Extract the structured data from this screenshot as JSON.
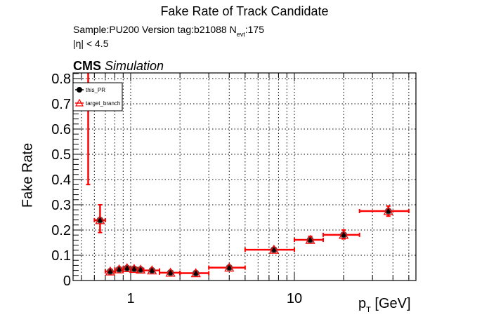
{
  "header": {
    "title": "Fake Rate of Track Candidate",
    "sample_prefix": "Sample:PU200   Version tag:b21088  N",
    "sample_sub": "evt",
    "sample_suffix": ":175",
    "eta_cut": "|η| < 4.5",
    "cms_label": "CMS",
    "cms_sublabel": "Simulation"
  },
  "axes": {
    "ylabel": "Fake Rate",
    "xlabel_main": "p",
    "xlabel_sub": "T",
    "xlabel_unit": " [GeV]"
  },
  "legend": {
    "items": [
      {
        "label": "this_PR",
        "marker": "filled-circle",
        "color": "#000000"
      },
      {
        "label": "target_branch",
        "marker": "open-triangle",
        "color": "#ff0000"
      }
    ]
  },
  "colors": {
    "this_PR": "#000000",
    "target_branch": "#ff0000",
    "grid": "#000000",
    "frame": "#000000"
  },
  "chart_data": {
    "type": "scatter",
    "title": "Fake Rate of Track Candidate",
    "subtitle": "Sample:PU200   Version tag:b21088  N_evt:175   |η| < 4.5",
    "annotation": "CMS Simulation",
    "xlabel": "p_T [GeV]",
    "ylabel": "Fake Rate",
    "xscale": "log",
    "xlim": [
      0.445,
      55
    ],
    "ylim": [
      0,
      0.82
    ],
    "xticks": [
      1,
      10
    ],
    "yticks": [
      0,
      0.1,
      0.2,
      0.3,
      0.4,
      0.5,
      0.6,
      0.7,
      0.8
    ],
    "grid": true,
    "legend_position": "upper-left",
    "series": [
      {
        "name": "this_PR",
        "marker": "filled-circle",
        "color": "#000000",
        "points": [
          {
            "x": 0.55,
            "xlo": 0.5,
            "xhi": 0.6,
            "y": 0.9,
            "ylo": 0.38,
            "yhi": 1.0
          },
          {
            "x": 0.65,
            "xlo": 0.6,
            "xhi": 0.7,
            "y": 0.239,
            "ylo": 0.19,
            "yhi": 0.3
          },
          {
            "x": 0.75,
            "xlo": 0.7,
            "xhi": 0.8,
            "y": 0.036,
            "ylo": 0.031,
            "yhi": 0.041
          },
          {
            "x": 0.85,
            "xlo": 0.8,
            "xhi": 0.9,
            "y": 0.044,
            "ylo": 0.039,
            "yhi": 0.049
          },
          {
            "x": 0.95,
            "xlo": 0.9,
            "xhi": 1.0,
            "y": 0.049,
            "ylo": 0.044,
            "yhi": 0.054
          },
          {
            "x": 1.05,
            "xlo": 1.0,
            "xhi": 1.1,
            "y": 0.046,
            "ylo": 0.041,
            "yhi": 0.051
          },
          {
            "x": 1.15,
            "xlo": 1.1,
            "xhi": 1.2,
            "y": 0.043,
            "ylo": 0.038,
            "yhi": 0.048
          },
          {
            "x": 1.35,
            "xlo": 1.2,
            "xhi": 1.5,
            "y": 0.04,
            "ylo": 0.036,
            "yhi": 0.044
          },
          {
            "x": 1.75,
            "xlo": 1.5,
            "xhi": 2.0,
            "y": 0.031,
            "ylo": 0.027,
            "yhi": 0.035
          },
          {
            "x": 2.5,
            "xlo": 2.0,
            "xhi": 3.0,
            "y": 0.029,
            "ylo": 0.025,
            "yhi": 0.033
          },
          {
            "x": 4.0,
            "xlo": 3.0,
            "xhi": 5.0,
            "y": 0.051,
            "ylo": 0.046,
            "yhi": 0.056
          },
          {
            "x": 7.5,
            "xlo": 5.0,
            "xhi": 10.0,
            "y": 0.122,
            "ylo": 0.116,
            "yhi": 0.128
          },
          {
            "x": 12.5,
            "xlo": 10.0,
            "xhi": 15.0,
            "y": 0.161,
            "ylo": 0.15,
            "yhi": 0.175
          },
          {
            "x": 20.0,
            "xlo": 15.0,
            "xhi": 25.0,
            "y": 0.181,
            "ylo": 0.165,
            "yhi": 0.2
          },
          {
            "x": 37.5,
            "xlo": 25.0,
            "xhi": 50.0,
            "y": 0.275,
            "ylo": 0.255,
            "yhi": 0.295
          }
        ]
      },
      {
        "name": "target_branch",
        "marker": "open-triangle",
        "color": "#ff0000",
        "points": "identical to this_PR (overlapping)"
      }
    ]
  }
}
